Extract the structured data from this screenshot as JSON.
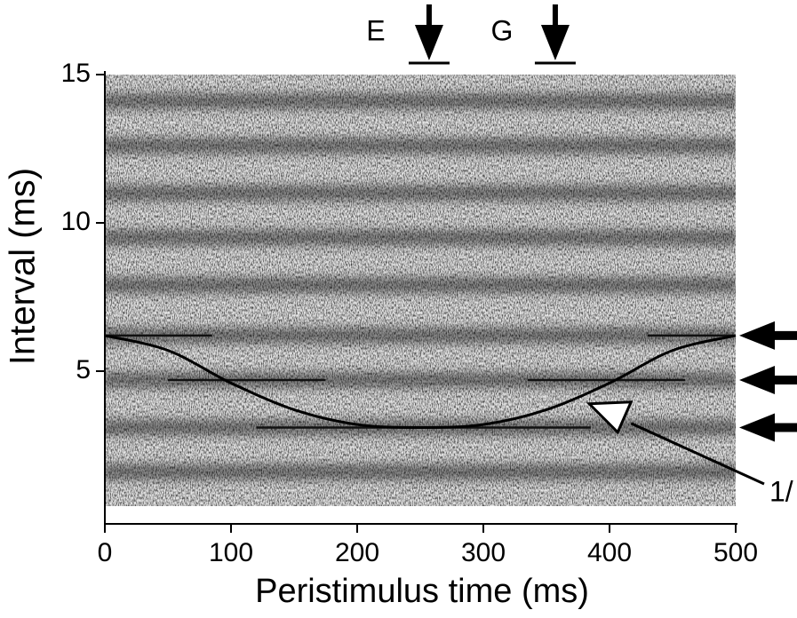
{
  "chart_data": {
    "type": "autocorrelogram",
    "xlabel": "Peristimulus time (ms)",
    "ylabel": "Interval (ms)",
    "xlim": [
      0,
      500
    ],
    "xticks": [
      0,
      100,
      200,
      300,
      400,
      500
    ],
    "ylim": [
      0,
      15
    ],
    "yticks": [
      5,
      10,
      15
    ],
    "bands": [
      1.6,
      3.1,
      4.7,
      6.2,
      7.9,
      9.5,
      11.0,
      12.6,
      14.1
    ],
    "curve": {
      "x": [
        0,
        50,
        100,
        150,
        200,
        250,
        300,
        350,
        400,
        450,
        500
      ],
      "values": [
        6.2,
        5.7,
        4.6,
        3.7,
        3.2,
        3.1,
        3.2,
        3.7,
        4.6,
        5.7,
        6.2
      ]
    },
    "segments": [
      {
        "y": 6.2,
        "x0": 0,
        "x1": 85
      },
      {
        "y": 6.2,
        "x0": 430,
        "x1": 500
      },
      {
        "y": 4.7,
        "x0": 50,
        "x1": 175
      },
      {
        "y": 4.7,
        "x0": 335,
        "x1": 460
      },
      {
        "y": 3.1,
        "x0": 120,
        "x1": 385
      }
    ],
    "right_arrows": [
      6.2,
      4.7,
      3.1
    ],
    "markers": [
      {
        "label": "E",
        "x": 257
      },
      {
        "label": "G",
        "x": 357
      }
    ],
    "annotation": {
      "text": "1/",
      "x": 410,
      "y": 3.6
    }
  }
}
